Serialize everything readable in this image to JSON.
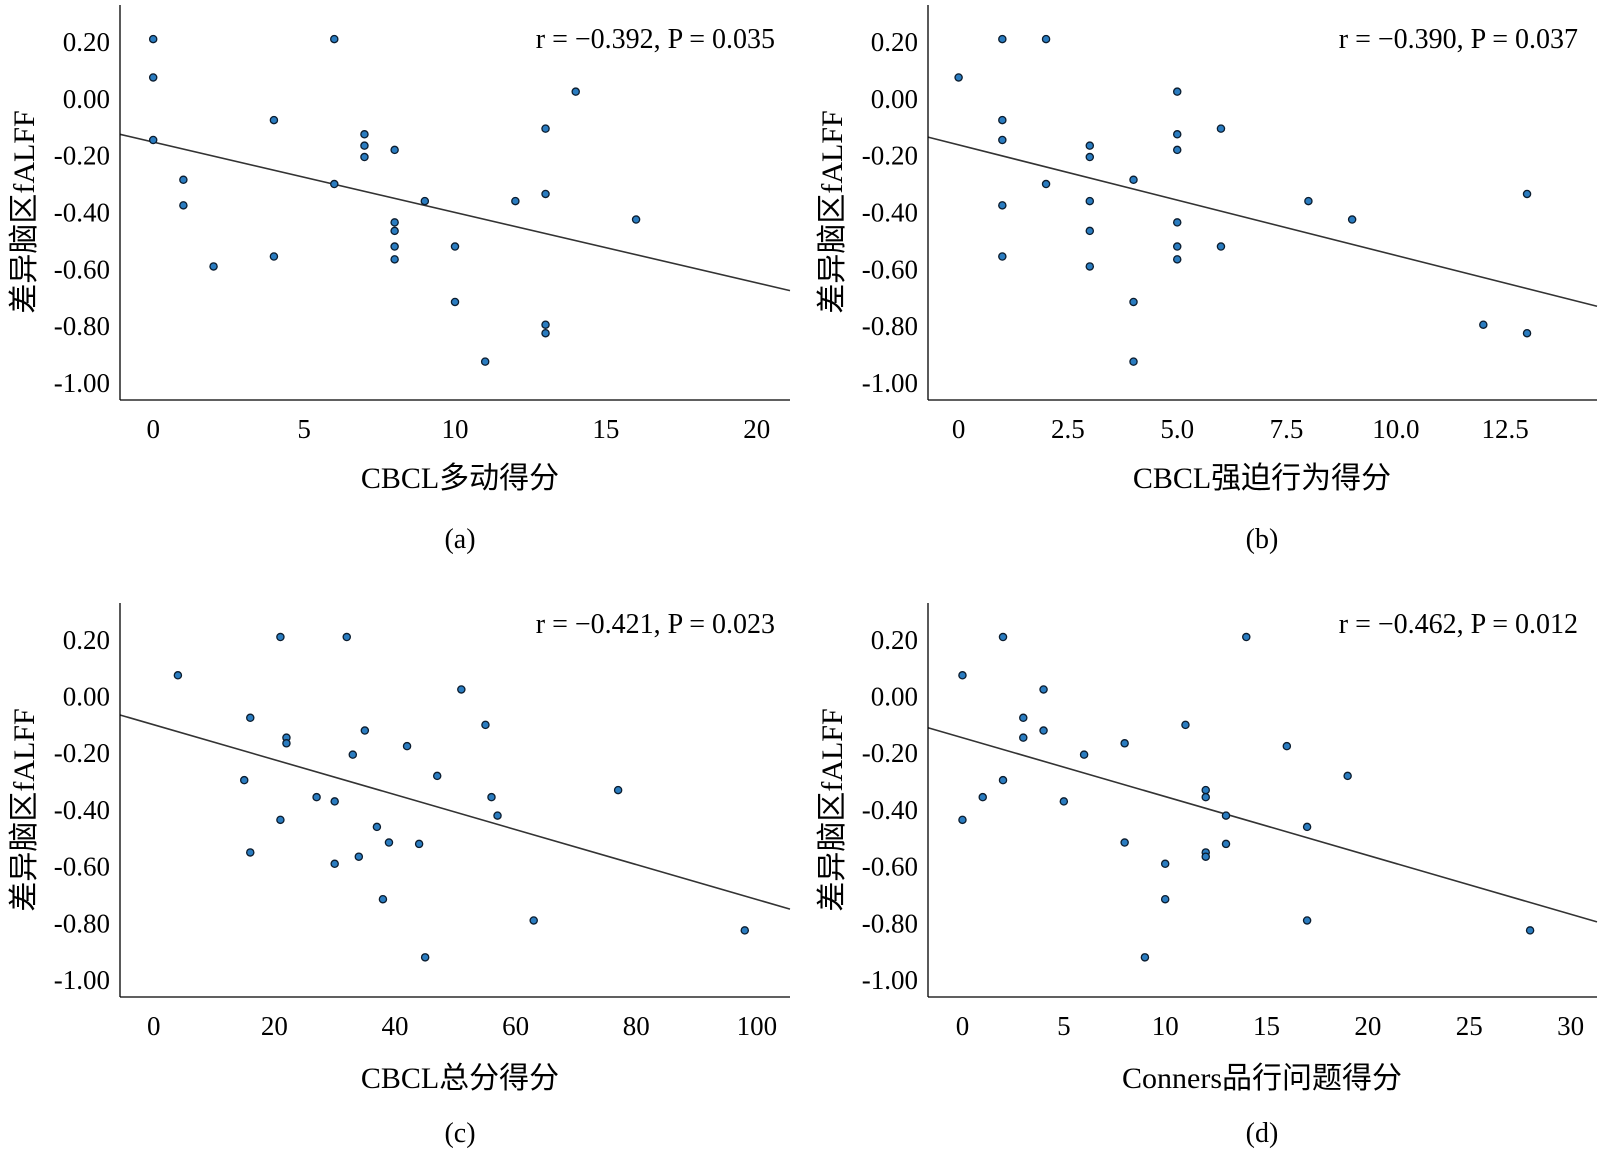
{
  "figure": {
    "ylabel": "差异脑区fALFF",
    "yticks": [
      "0.20",
      "0.00",
      "-0.20",
      "-0.40",
      "-0.60",
      "-0.80",
      "-1.00"
    ]
  },
  "chart_data": [
    {
      "id": "a",
      "type": "scatter",
      "caption": "(a)",
      "annotation": "r = −0.392, P = 0.035",
      "xlabel": "CBCL多动得分",
      "ylabel": "差异脑区fALFF",
      "xlim": [
        -1.1,
        21.1
      ],
      "ylim": [
        -1.06,
        0.33
      ],
      "xticks": [
        0,
        5,
        10,
        15,
        20
      ],
      "xtick_labels": [
        "0",
        "5",
        "10",
        "15",
        "20"
      ],
      "yticks": [
        0.2,
        0.0,
        -0.2,
        -0.4,
        -0.6,
        -0.8,
        -1.0
      ],
      "fit": {
        "x": [
          -1.1,
          21.1
        ],
        "y": [
          -0.125,
          -0.675
        ]
      },
      "points": [
        [
          0,
          0.21
        ],
        [
          0,
          0.075
        ],
        [
          0,
          -0.145
        ],
        [
          1,
          -0.285
        ],
        [
          1,
          -0.375
        ],
        [
          2,
          -0.59
        ],
        [
          4,
          -0.075
        ],
        [
          4,
          -0.555
        ],
        [
          6,
          0.21
        ],
        [
          6,
          -0.3
        ],
        [
          7,
          -0.125
        ],
        [
          7,
          -0.165
        ],
        [
          7,
          -0.205
        ],
        [
          8,
          -0.18
        ],
        [
          8,
          -0.435
        ],
        [
          8,
          -0.465
        ],
        [
          8,
          -0.52
        ],
        [
          8,
          -0.565
        ],
        [
          9,
          -0.36
        ],
        [
          10,
          -0.52
        ],
        [
          10,
          -0.715
        ],
        [
          11,
          -0.925
        ],
        [
          12,
          -0.36
        ],
        [
          13,
          -0.105
        ],
        [
          13,
          -0.335
        ],
        [
          13,
          -0.795
        ],
        [
          13,
          -0.825
        ],
        [
          14,
          0.025
        ],
        [
          16,
          -0.425
        ]
      ]
    },
    {
      "id": "b",
      "type": "scatter",
      "caption": "(b)",
      "annotation": "r = −0.390, P = 0.037",
      "xlabel": "CBCL强迫行为得分",
      "ylabel": "差异脑区fALFF",
      "xlim": [
        -0.7,
        14.6
      ],
      "ylim": [
        -1.06,
        0.33
      ],
      "xticks": [
        0,
        2.5,
        5.0,
        7.5,
        10.0,
        12.5
      ],
      "xtick_labels": [
        "0",
        "2.5",
        "5.0",
        "7.5",
        "10.0",
        "12.5"
      ],
      "yticks": [
        0.2,
        0.0,
        -0.2,
        -0.4,
        -0.6,
        -0.8,
        -1.0
      ],
      "fit": {
        "x": [
          -0.7,
          14.6
        ],
        "y": [
          -0.135,
          -0.73
        ]
      },
      "points": [
        [
          0,
          0.075
        ],
        [
          1,
          0.21
        ],
        [
          1,
          -0.075
        ],
        [
          1,
          -0.145
        ],
        [
          1,
          -0.375
        ],
        [
          1,
          -0.555
        ],
        [
          2,
          0.21
        ],
        [
          2,
          -0.3
        ],
        [
          3,
          -0.165
        ],
        [
          3,
          -0.205
        ],
        [
          3,
          -0.36
        ],
        [
          3,
          -0.465
        ],
        [
          3,
          -0.59
        ],
        [
          4,
          -0.285
        ],
        [
          4,
          -0.715
        ],
        [
          4,
          -0.925
        ],
        [
          5,
          0.025
        ],
        [
          5,
          -0.125
        ],
        [
          5,
          -0.18
        ],
        [
          5,
          -0.435
        ],
        [
          5,
          -0.52
        ],
        [
          5,
          -0.565
        ],
        [
          6,
          -0.105
        ],
        [
          6,
          -0.52
        ],
        [
          8,
          -0.36
        ],
        [
          9,
          -0.425
        ],
        [
          12,
          -0.795
        ],
        [
          13,
          -0.335
        ],
        [
          13,
          -0.825
        ]
      ]
    },
    {
      "id": "c",
      "type": "scatter",
      "caption": "(c)",
      "annotation": "r = −0.421, P = 0.023",
      "xlabel": "CBCL总分得分",
      "ylabel": "差异脑区fALFF",
      "xlim": [
        -5.6,
        105.5
      ],
      "ylim": [
        -1.06,
        0.33
      ],
      "xticks": [
        0,
        20,
        40,
        60,
        80,
        100
      ],
      "xtick_labels": [
        "0",
        "20",
        "40",
        "60",
        "80",
        "100"
      ],
      "yticks": [
        0.2,
        0.0,
        -0.2,
        -0.4,
        -0.6,
        -0.8,
        -1.0
      ],
      "fit": {
        "x": [
          -5.6,
          105.5
        ],
        "y": [
          -0.065,
          -0.75
        ]
      },
      "points": [
        [
          4,
          0.075
        ],
        [
          15,
          -0.295
        ],
        [
          16,
          -0.075
        ],
        [
          16,
          -0.55
        ],
        [
          21,
          0.21
        ],
        [
          21,
          -0.435
        ],
        [
          22,
          -0.145
        ],
        [
          22,
          -0.165
        ],
        [
          27,
          -0.355
        ],
        [
          30,
          -0.37
        ],
        [
          30,
          -0.59
        ],
        [
          32,
          0.21
        ],
        [
          33,
          -0.205
        ],
        [
          34,
          -0.565
        ],
        [
          35,
          -0.12
        ],
        [
          37,
          -0.46
        ],
        [
          38,
          -0.715
        ],
        [
          39,
          -0.515
        ],
        [
          42,
          -0.175
        ],
        [
          44,
          -0.52
        ],
        [
          45,
          -0.92
        ],
        [
          47,
          -0.28
        ],
        [
          51,
          0.025
        ],
        [
          55,
          -0.1
        ],
        [
          56,
          -0.355
        ],
        [
          57,
          -0.42
        ],
        [
          63,
          -0.79
        ],
        [
          77,
          -0.33
        ],
        [
          98,
          -0.825
        ]
      ]
    },
    {
      "id": "d",
      "type": "scatter",
      "caption": "(d)",
      "annotation": "r = −0.462, P = 0.012",
      "xlabel": "Conners品行问题得分",
      "ylabel": "差异脑区fALFF",
      "xlim": [
        -1.7,
        31.3
      ],
      "ylim": [
        -1.06,
        0.33
      ],
      "xticks": [
        0,
        5,
        10,
        15,
        20,
        25,
        30
      ],
      "xtick_labels": [
        "0",
        "5",
        "10",
        "15",
        "20",
        "25",
        "30"
      ],
      "yticks": [
        0.2,
        0.0,
        -0.2,
        -0.4,
        -0.6,
        -0.8,
        -1.0
      ],
      "fit": {
        "x": [
          -1.7,
          31.3
        ],
        "y": [
          -0.11,
          -0.795
        ]
      },
      "points": [
        [
          0,
          0.075
        ],
        [
          0,
          -0.435
        ],
        [
          1,
          -0.355
        ],
        [
          2,
          0.21
        ],
        [
          2,
          -0.295
        ],
        [
          3,
          -0.075
        ],
        [
          3,
          -0.145
        ],
        [
          4,
          0.025
        ],
        [
          4,
          -0.12
        ],
        [
          5,
          -0.37
        ],
        [
          6,
          -0.205
        ],
        [
          8,
          -0.165
        ],
        [
          8,
          -0.515
        ],
        [
          10,
          -0.59
        ],
        [
          10,
          -0.715
        ],
        [
          9,
          -0.92
        ],
        [
          11,
          -0.1
        ],
        [
          12,
          -0.33
        ],
        [
          12,
          -0.355
        ],
        [
          12,
          -0.55
        ],
        [
          12,
          -0.565
        ],
        [
          13,
          -0.42
        ],
        [
          13,
          -0.52
        ],
        [
          14,
          0.21
        ],
        [
          16,
          -0.175
        ],
        [
          17,
          -0.46
        ],
        [
          17,
          -0.79
        ],
        [
          19,
          -0.28
        ],
        [
          28,
          -0.825
        ]
      ]
    }
  ]
}
